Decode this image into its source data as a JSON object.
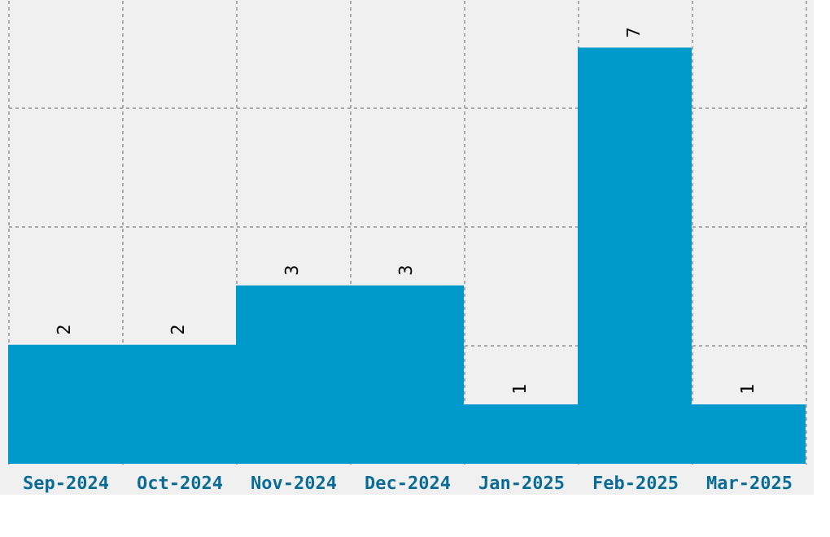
{
  "chart_data": {
    "type": "bar",
    "categories": [
      "Sep-2024",
      "Oct-2024",
      "Nov-2024",
      "Dec-2024",
      "Jan-2025",
      "Feb-2025",
      "Mar-2025"
    ],
    "values": [
      2,
      2,
      3,
      3,
      1,
      7,
      1
    ],
    "color": "#0099cc",
    "data_labels": true,
    "tick_labels": "x",
    "grid": true,
    "ylim": [
      0,
      7.8
    ],
    "yticks": [
      {
        "value": 2,
        "label": null
      },
      {
        "value": 4,
        "label": null
      },
      {
        "value": 6,
        "label": null
      }
    ]
  }
}
